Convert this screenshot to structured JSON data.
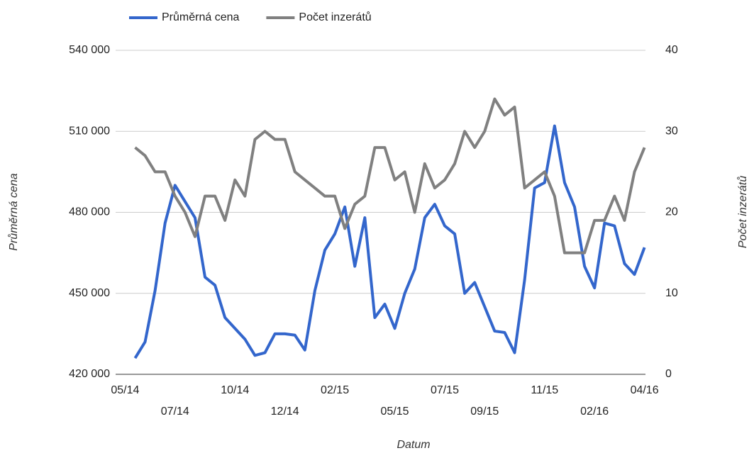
{
  "chart_data": {
    "type": "line",
    "series": [
      {
        "name": "Průměrná cena",
        "color": "#3366cc",
        "values": [
          426000,
          432000,
          451000,
          476000,
          490000,
          484000,
          478000,
          456000,
          453000,
          441000,
          437000,
          433000,
          427000,
          428000,
          435000,
          435000,
          434500,
          429000,
          451000,
          466000,
          472000,
          482000,
          460000,
          478000,
          441000,
          446000,
          437000,
          450000,
          459000,
          478000,
          483000,
          475000,
          472000,
          450000,
          454000,
          445000,
          436000,
          435500,
          428000,
          455000,
          489000,
          491000,
          512000,
          491000,
          482000,
          460000,
          452000,
          476000,
          475000,
          461000,
          457000,
          467000
        ]
      },
      {
        "name": "Počet inzerátů",
        "color": "#808080",
        "axis": "y2",
        "values": [
          28,
          27,
          25,
          25,
          22,
          20,
          17,
          22,
          22,
          19,
          24,
          22,
          29,
          30,
          29,
          29,
          25,
          24,
          23,
          22,
          22,
          18,
          21,
          22,
          28,
          28,
          24,
          25,
          20,
          26,
          23,
          24,
          26,
          30,
          28,
          30,
          34,
          32,
          33,
          23,
          24,
          25,
          22,
          15,
          15,
          15,
          19,
          19,
          22,
          19,
          25,
          28
        ]
      }
    ],
    "x_label": "Datum",
    "y_label": "Průměrná cena",
    "y2_label": "Počet inzerátů",
    "xlim": [
      -1.95,
      51.1
    ],
    "xticks": [
      {
        "value": -1,
        "label": "05/14"
      },
      {
        "value": 4,
        "label": "07/14"
      },
      {
        "value": 10,
        "label": "10/14"
      },
      {
        "value": 15,
        "label": "12/14"
      },
      {
        "value": 20,
        "label": "02/15"
      },
      {
        "value": 26,
        "label": "05/15"
      },
      {
        "value": 31,
        "label": "07/15"
      },
      {
        "value": 35,
        "label": "09/15"
      },
      {
        "value": 41,
        "label": "11/15"
      },
      {
        "value": 46,
        "label": "02/16"
      },
      {
        "value": 51,
        "label": "04/16"
      }
    ],
    "ylim": [
      420000,
      540000
    ],
    "yticks": [
      {
        "value": 420000,
        "label": "420 000"
      },
      {
        "value": 450000,
        "label": "450 000"
      },
      {
        "value": 480000,
        "label": "480 000"
      },
      {
        "value": 510000,
        "label": "510 000"
      },
      {
        "value": 540000,
        "label": "540 000"
      }
    ],
    "y2lim": [
      0,
      40
    ],
    "y2ticks": [
      0,
      10,
      20,
      30,
      40
    ],
    "grid": true,
    "legend": "top"
  }
}
